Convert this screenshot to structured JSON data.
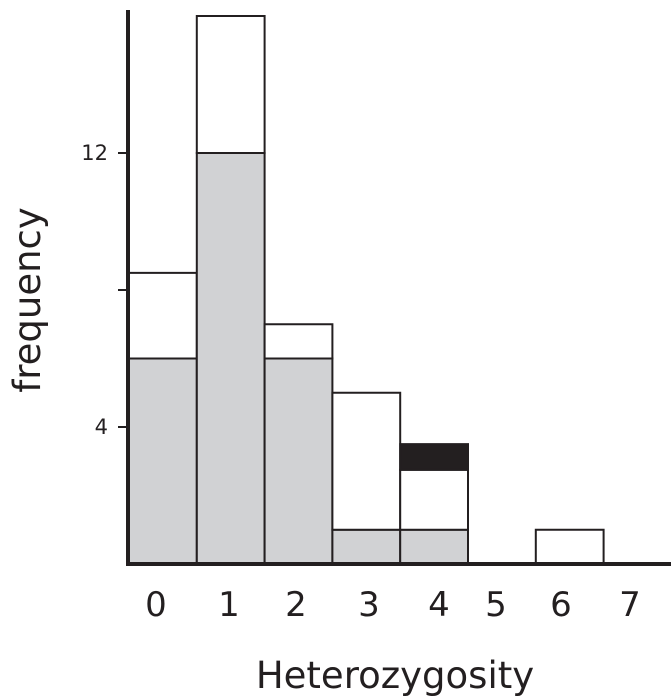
{
  "chart_data": {
    "type": "bar",
    "stacked": true,
    "xlabel": "Heterozygosity",
    "ylabel": "frequency",
    "categories": [
      "0",
      "1",
      "2",
      "3",
      "4",
      "5",
      "6",
      "7"
    ],
    "ylim": [
      0,
      16
    ],
    "yticks": [
      {
        "value": 4,
        "label": "4"
      },
      {
        "value": 8,
        "label": ""
      },
      {
        "value": 12,
        "label": "12"
      }
    ],
    "series": [
      {
        "color": "#d1d2d4",
        "values": [
          6,
          12,
          6,
          1,
          1,
          0,
          0,
          0
        ]
      },
      {
        "color": "#ffffff",
        "values": [
          2.5,
          4,
          1,
          4,
          1.75,
          0,
          1,
          0
        ]
      },
      {
        "color": "#231f20",
        "values": [
          0,
          0,
          0,
          0,
          0.75,
          0,
          0,
          0
        ]
      }
    ],
    "grid": false,
    "legend": "none"
  }
}
